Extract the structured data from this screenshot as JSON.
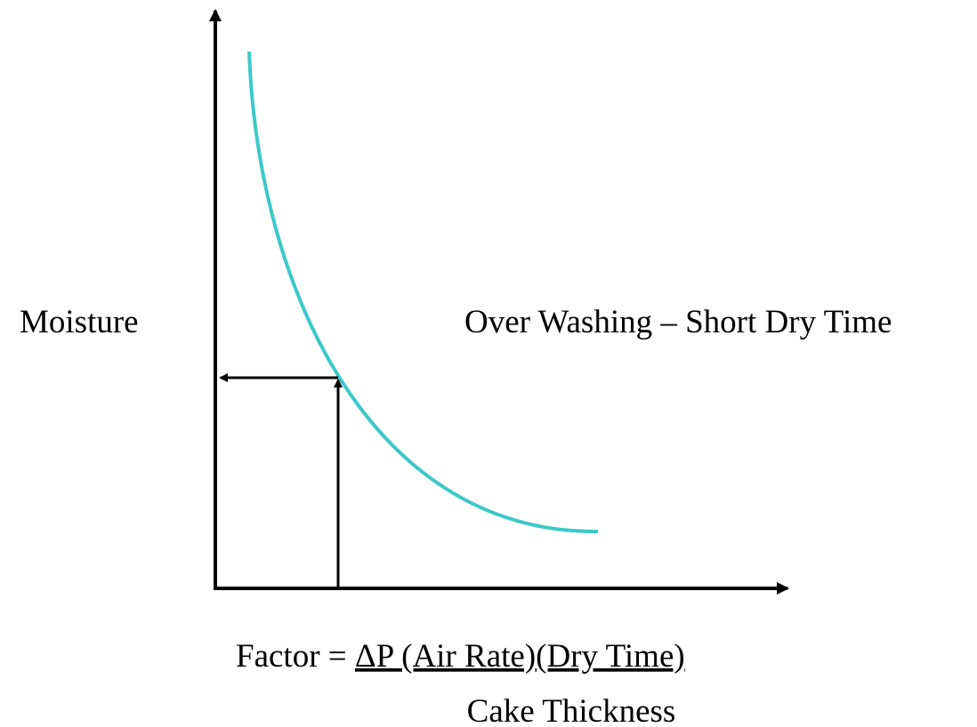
{
  "diagram": {
    "y_axis_label": "Moisture",
    "annotation": "Over Washing – Short Dry Time",
    "formula": {
      "prefix": "Factor = ",
      "numerator": "ΔP (Air Rate)(Dry Time)",
      "denominator": "Cake Thickness"
    }
  }
}
